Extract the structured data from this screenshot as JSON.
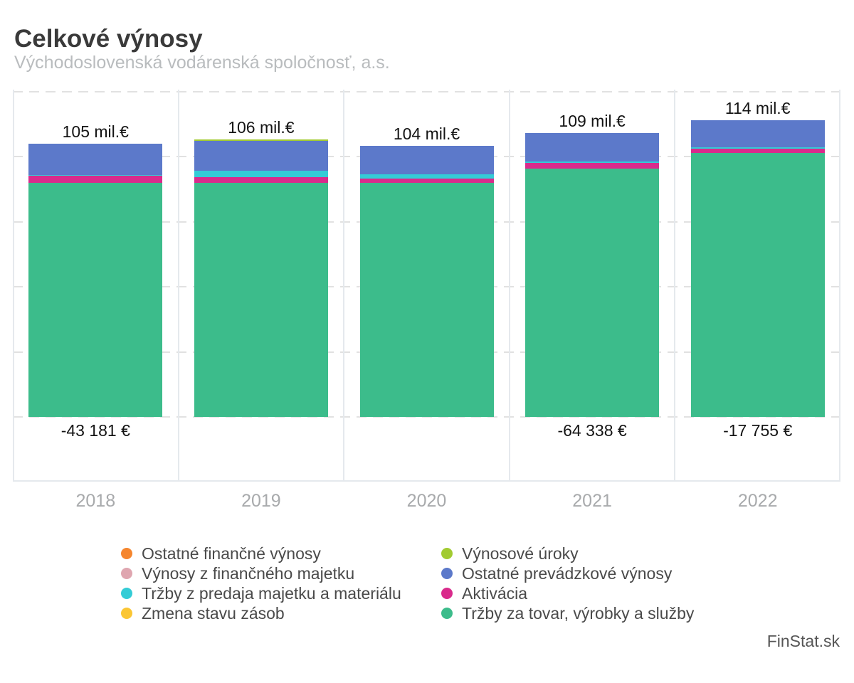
{
  "header": {
    "title": "Celkové výnosy",
    "subtitle": "Východoslovenská vodárenská spoločnosť, a.s."
  },
  "credit": "FinStat.sk",
  "chart_data": {
    "type": "bar",
    "stacked": true,
    "title": "Celkové výnosy",
    "subtitle": "Východoslovenská vodárenská spoločnosť, a.s.",
    "unit": "mil.€",
    "categories": [
      "2018",
      "2019",
      "2020",
      "2021",
      "2022"
    ],
    "ylim": [
      -25,
      125
    ],
    "gridlines_mil": [
      125,
      100,
      75,
      50,
      25,
      0
    ],
    "grid": "dashed-horizontal",
    "legend_position": "bottom-two-columns",
    "series": [
      {
        "name": "Tržby za tovar, výrobky a služby",
        "color": "#3cbc8b",
        "values": [
          89.8,
          89.8,
          89.8,
          95.4,
          101.3
        ]
      },
      {
        "name": "Aktivácia",
        "color": "#d92b8c",
        "values": [
          2.7,
          2.4,
          1.8,
          2.1,
          1.7
        ]
      },
      {
        "name": "Tržby z predaja majetku a materiálu",
        "color": "#34ccd6",
        "values": [
          0.5,
          2.2,
          1.6,
          0.5,
          0.5
        ]
      },
      {
        "name": "Ostatné prevádzkové výnosy",
        "color": "#5c79ca",
        "values": [
          12.0,
          11.6,
          10.8,
          11.0,
          10.5
        ]
      },
      {
        "name": "Výnosové úroky",
        "color": "#a2cb31",
        "values": [
          0,
          0.6,
          0,
          0,
          0
        ]
      },
      {
        "name": "Ostatné finančné výnosy",
        "color": "#f5862e",
        "values": [
          0,
          0,
          0,
          0,
          0
        ]
      },
      {
        "name": "Výnosy z finančného majetku",
        "color": "#dfa6b0",
        "values": [
          0,
          0,
          0,
          0,
          0
        ]
      },
      {
        "name": "Zmena stavu zásob",
        "color": "#fbc634",
        "values": [
          -0.043181,
          0,
          0,
          -0.064338,
          -0.017755
        ]
      }
    ],
    "totals_mil": [
      105,
      106,
      104,
      109,
      114
    ],
    "total_labels": [
      "105 mil.€",
      "106 mil.€",
      "104 mil.€",
      "109 mil.€",
      "114 mil.€"
    ],
    "negative_totals_eur": [
      -43181,
      null,
      null,
      -64338,
      -17755
    ],
    "negative_labels": [
      "-43 181 €",
      "",
      "",
      "-64 338 €",
      "-17 755 €"
    ]
  },
  "legend": {
    "columns": [
      {
        "items": [
          {
            "label": "Ostatné finančné výnosy",
            "color": "#f5862e"
          },
          {
            "label": "Výnosy z finančného majetku",
            "color": "#dfa6b0"
          },
          {
            "label": "Tržby z predaja majetku a materiálu",
            "color": "#34ccd6"
          },
          {
            "label": "Zmena stavu zásob",
            "color": "#fbc634"
          }
        ]
      },
      {
        "items": [
          {
            "label": "Výnosové úroky",
            "color": "#a2cb31"
          },
          {
            "label": "Ostatné prevádzkové výnosy",
            "color": "#5c79ca"
          },
          {
            "label": "Aktivácia",
            "color": "#d92b8c"
          },
          {
            "label": "Tržby za tovar, výrobky a služby",
            "color": "#3cbc8b"
          }
        ]
      }
    ]
  },
  "colors": {
    "grid": "#e1e1e1",
    "frame": "#e5e9ed",
    "title_text": "#3a3a3a",
    "subtitle_text": "#b9bcbe",
    "axis_text": "#a8aaac",
    "label_text": "#141414",
    "legend_text": "#4a4a4a"
  }
}
